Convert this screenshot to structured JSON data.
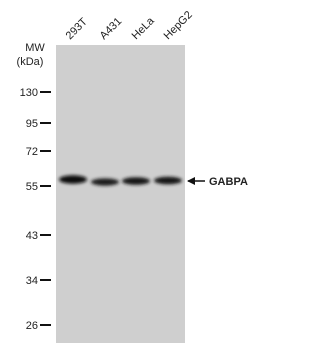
{
  "lanes": [
    "293T",
    "A431",
    "HeLa",
    "HepG2"
  ],
  "mw_header": "MW",
  "mw_unit": "(kDa)",
  "markers": [
    130,
    95,
    72,
    55,
    43,
    34,
    26
  ],
  "band_label": "GABPA"
}
